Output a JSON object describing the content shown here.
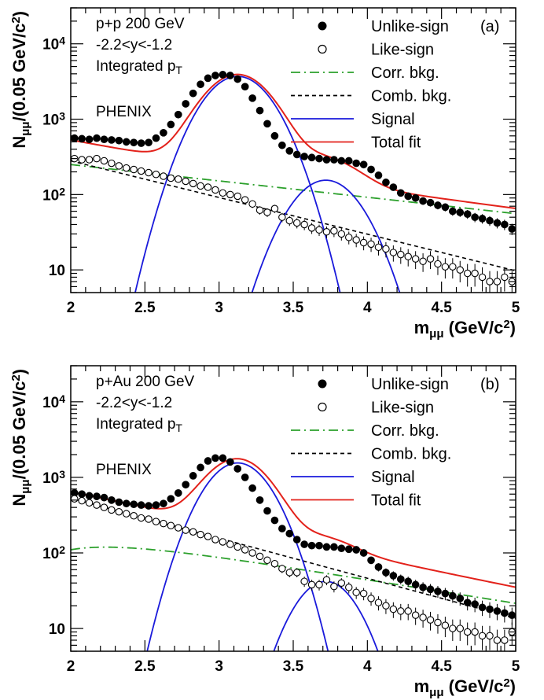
{
  "chart_data": [
    {
      "type": "scatter",
      "panel_label": "(a)",
      "info_lines": [
        "p+p 200 GeV",
        "-2.2<y<-1.2",
        "Integrated p",
        "PHENIX"
      ],
      "info_pt_subscript": "T",
      "xlabel": "m",
      "xlabel_sub": "μμ",
      "xlabel_unit": " (GeV/c",
      "xlabel_sup": "2",
      "xlabel_close": ")",
      "ylabel": "N",
      "ylabel_sub": "μμ",
      "ylabel_unit": "/(0.05 GeV/c",
      "ylabel_sup": "2",
      "ylabel_close": ")",
      "xlim": [
        2,
        5
      ],
      "ylim": [
        5,
        30000
      ],
      "yscale": "log",
      "x_ticks": [
        "2",
        "2.5",
        "3",
        "3.5",
        "4",
        "4.5",
        "5"
      ],
      "y_ticks": [
        {
          "base": "10",
          "exp": ""
        },
        {
          "base": "10",
          "exp": "2"
        },
        {
          "base": "10",
          "exp": "3"
        },
        {
          "base": "10",
          "exp": "4"
        }
      ],
      "legend": [
        "Unlike-sign",
        "Like-sign",
        "Corr. bkg.",
        "Comb. bkg.",
        "Signal",
        "Total fit"
      ],
      "series": [
        {
          "name": "Unlike-sign",
          "style": "filled",
          "x": [
            2.025,
            2.075,
            2.125,
            2.175,
            2.225,
            2.275,
            2.325,
            2.375,
            2.425,
            2.475,
            2.525,
            2.575,
            2.625,
            2.675,
            2.725,
            2.775,
            2.825,
            2.875,
            2.925,
            2.975,
            3.025,
            3.075,
            3.125,
            3.175,
            3.225,
            3.275,
            3.325,
            3.375,
            3.425,
            3.475,
            3.525,
            3.575,
            3.625,
            3.675,
            3.725,
            3.775,
            3.825,
            3.875,
            3.925,
            3.975,
            4.025,
            4.075,
            4.125,
            4.175,
            4.225,
            4.275,
            4.325,
            4.375,
            4.425,
            4.475,
            4.525,
            4.575,
            4.625,
            4.675,
            4.725,
            4.775,
            4.825,
            4.875,
            4.925,
            4.975
          ],
          "y": [
            560,
            550,
            540,
            560,
            540,
            530,
            520,
            500,
            490,
            480,
            490,
            560,
            660,
            850,
            1150,
            1600,
            2200,
            2900,
            3500,
            3800,
            3900,
            3800,
            3400,
            2700,
            1900,
            1300,
            870,
            600,
            450,
            380,
            340,
            320,
            310,
            300,
            290,
            290,
            280,
            280,
            260,
            250,
            215,
            180,
            145,
            125,
            105,
            95,
            90,
            82,
            78,
            72,
            68,
            60,
            58,
            55,
            50,
            48,
            45,
            42,
            40,
            35
          ]
        },
        {
          "name": "Like-sign",
          "style": "open",
          "x": [
            2.025,
            2.075,
            2.125,
            2.175,
            2.225,
            2.275,
            2.325,
            2.375,
            2.425,
            2.475,
            2.525,
            2.575,
            2.625,
            2.675,
            2.725,
            2.775,
            2.825,
            2.875,
            2.925,
            2.975,
            3.025,
            3.075,
            3.125,
            3.175,
            3.225,
            3.275,
            3.325,
            3.375,
            3.425,
            3.475,
            3.525,
            3.575,
            3.625,
            3.675,
            3.725,
            3.775,
            3.825,
            3.875,
            3.925,
            3.975,
            4.025,
            4.075,
            4.125,
            4.175,
            4.225,
            4.275,
            4.325,
            4.375,
            4.425,
            4.475,
            4.525,
            4.575,
            4.625,
            4.675,
            4.725,
            4.775,
            4.825,
            4.875,
            4.925,
            4.975
          ],
          "y": [
            300,
            290,
            290,
            300,
            280,
            260,
            240,
            225,
            215,
            205,
            195,
            185,
            175,
            165,
            160,
            150,
            140,
            130,
            125,
            115,
            105,
            100,
            95,
            85,
            75,
            62,
            58,
            65,
            50,
            45,
            42,
            40,
            36,
            34,
            32,
            33,
            30,
            27,
            25,
            23,
            22,
            20,
            19,
            17,
            16,
            15,
            14,
            13,
            14,
            12,
            11,
            11,
            10,
            9,
            9,
            8,
            7,
            7,
            8,
            7
          ]
        }
      ],
      "curves": [
        {
          "name": "Corr. bkg.",
          "style": "dashdot",
          "color": "#2ca02c",
          "amp": 250,
          "slope": 0.5
        },
        {
          "name": "Comb. bkg.",
          "style": "dashed",
          "color": "#000000",
          "amp": 280,
          "slope": 1.12
        },
        {
          "name": "Signal",
          "style": "solid",
          "color": "#1a1adb",
          "peaks": [
            {
              "amp": 3700,
              "mean": 3.125,
              "sigma": 0.19
            },
            {
              "amp": 155,
              "mean": 3.72,
              "sigma": 0.19
            }
          ]
        },
        {
          "name": "Total fit",
          "style": "solid",
          "color": "#e3221b"
        }
      ]
    },
    {
      "type": "scatter",
      "panel_label": "(b)",
      "info_lines": [
        "p+Au 200 GeV",
        "-2.2<y<-1.2",
        "Integrated p",
        "PHENIX"
      ],
      "info_pt_subscript": "T",
      "xlabel": "m",
      "xlabel_sub": "μμ",
      "xlabel_unit": " (GeV/c",
      "xlabel_sup": "2",
      "xlabel_close": ")",
      "ylabel": "N",
      "ylabel_sub": "μμ",
      "ylabel_unit": "/(0.05 GeV/c",
      "ylabel_sup": "2",
      "ylabel_close": ")",
      "xlim": [
        2,
        5
      ],
      "ylim": [
        5,
        30000
      ],
      "yscale": "log",
      "x_ticks": [
        "2",
        "2.5",
        "3",
        "3.5",
        "4",
        "4.5",
        "5"
      ],
      "y_ticks": [
        {
          "base": "10",
          "exp": ""
        },
        {
          "base": "10",
          "exp": "2"
        },
        {
          "base": "10",
          "exp": "3"
        },
        {
          "base": "10",
          "exp": "4"
        }
      ],
      "legend": [
        "Unlike-sign",
        "Like-sign",
        "Corr. bkg.",
        "Comb. bkg.",
        "Signal",
        "Total fit"
      ],
      "series": [
        {
          "name": "Unlike-sign",
          "style": "filled",
          "x": [
            2.025,
            2.075,
            2.125,
            2.175,
            2.225,
            2.275,
            2.325,
            2.375,
            2.425,
            2.475,
            2.525,
            2.575,
            2.625,
            2.675,
            2.725,
            2.775,
            2.825,
            2.875,
            2.925,
            2.975,
            3.025,
            3.075,
            3.125,
            3.175,
            3.225,
            3.275,
            3.325,
            3.375,
            3.425,
            3.475,
            3.525,
            3.575,
            3.625,
            3.675,
            3.725,
            3.775,
            3.825,
            3.875,
            3.925,
            3.975,
            4.025,
            4.075,
            4.125,
            4.175,
            4.225,
            4.275,
            4.325,
            4.375,
            4.425,
            4.475,
            4.525,
            4.575,
            4.625,
            4.675,
            4.725,
            4.775,
            4.825,
            4.875,
            4.925,
            4.975
          ],
          "y": [
            620,
            600,
            570,
            560,
            540,
            500,
            470,
            450,
            440,
            430,
            420,
            430,
            450,
            520,
            620,
            800,
            1050,
            1350,
            1650,
            1800,
            1800,
            1600,
            1300,
            1000,
            720,
            500,
            360,
            270,
            210,
            180,
            150,
            130,
            125,
            125,
            120,
            120,
            115,
            112,
            110,
            100,
            80,
            65,
            55,
            50,
            45,
            42,
            38,
            35,
            33,
            31,
            29,
            27,
            25,
            22,
            21,
            19,
            18,
            17,
            16,
            15
          ]
        },
        {
          "name": "Like-sign",
          "style": "open",
          "x": [
            2.025,
            2.075,
            2.125,
            2.175,
            2.225,
            2.275,
            2.325,
            2.375,
            2.425,
            2.475,
            2.525,
            2.575,
            2.625,
            2.675,
            2.725,
            2.775,
            2.825,
            2.875,
            2.925,
            2.975,
            3.025,
            3.075,
            3.125,
            3.175,
            3.225,
            3.275,
            3.325,
            3.375,
            3.425,
            3.475,
            3.525,
            3.575,
            3.625,
            3.675,
            3.725,
            3.775,
            3.825,
            3.875,
            3.925,
            3.975,
            4.025,
            4.075,
            4.125,
            4.175,
            4.225,
            4.275,
            4.325,
            4.375,
            4.425,
            4.475,
            4.525,
            4.575,
            4.625,
            4.675,
            4.725,
            4.775,
            4.825,
            4.875,
            4.925,
            4.975
          ],
          "y": [
            520,
            490,
            460,
            430,
            400,
            370,
            350,
            330,
            310,
            290,
            280,
            260,
            245,
            230,
            215,
            200,
            190,
            175,
            165,
            150,
            140,
            130,
            120,
            110,
            100,
            90,
            80,
            72,
            62,
            55,
            55,
            42,
            38,
            38,
            44,
            36,
            40,
            35,
            30,
            29,
            25,
            22,
            20,
            18,
            17,
            17,
            15,
            14,
            13,
            12,
            11,
            10,
            10,
            9,
            9,
            8,
            8,
            7,
            7,
            9
          ]
        }
      ],
      "curves": [
        {
          "name": "Corr. bkg.",
          "style": "dashdot",
          "color": "#2ca02c",
          "amp": 110,
          "slope": 0.72,
          "rise": 0.45
        },
        {
          "name": "Comb. bkg.",
          "style": "dashed",
          "color": "#000000",
          "amp": 530,
          "slope": 1.22
        },
        {
          "name": "Signal",
          "style": "solid",
          "color": "#1a1adb",
          "peaks": [
            {
              "amp": 1550,
              "mean": 3.125,
              "sigma": 0.18
            },
            {
              "amp": 42,
              "mean": 3.72,
              "sigma": 0.17
            }
          ]
        },
        {
          "name": "Total fit",
          "style": "solid",
          "color": "#e3221b"
        }
      ]
    }
  ]
}
